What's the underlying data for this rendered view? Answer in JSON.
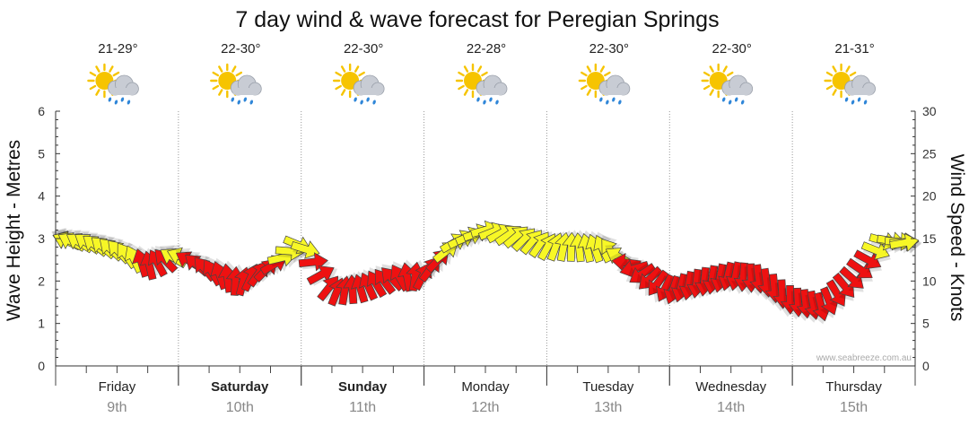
{
  "colors": {
    "arrow_strong": "#ee1111",
    "arrow_medium": "#f7f726",
    "arrow_stroke": "#444444",
    "grid": "#999999",
    "sun": "#f6c400",
    "cloud": "#c8ccd4",
    "rain": "#2f86d8"
  },
  "icons": {
    "weather": "sun-cloud-rain-icon"
  },
  "credit": "www.seabreeze.com.au",
  "chart_data": {
    "type": "line",
    "title": "7 day wind & wave forecast for Peregian Springs",
    "ylabel": "Wave Height - Metres",
    "y2label": "Wind Speed - Knots",
    "ylim": [
      0,
      6
    ],
    "y2lim": [
      0,
      30
    ],
    "yticks": [
      "0",
      "1",
      "2",
      "3",
      "4",
      "5",
      "6"
    ],
    "y2ticks": [
      "0",
      "5",
      "10",
      "15",
      "20",
      "25",
      "30"
    ],
    "grid": true,
    "days": [
      {
        "name": "Friday",
        "date": "9th",
        "temp": "21-29°",
        "bold": false
      },
      {
        "name": "Saturday",
        "date": "10th",
        "temp": "22-30°",
        "bold": true
      },
      {
        "name": "Sunday",
        "date": "11th",
        "temp": "22-30°",
        "bold": true
      },
      {
        "name": "Monday",
        "date": "12th",
        "temp": "22-28°",
        "bold": false
      },
      {
        "name": "Tuesday",
        "date": "13th",
        "temp": "22-30°",
        "bold": false
      },
      {
        "name": "Wednesday",
        "date": "14th",
        "temp": "22-30°",
        "bold": false
      },
      {
        "name": "Thursday",
        "date": "15th",
        "temp": "21-31°",
        "bold": false
      }
    ],
    "series": [
      {
        "x": [
          0.0,
          0.25,
          0.5,
          0.75,
          1.0,
          1.25,
          1.5,
          1.75,
          2.0,
          2.25,
          2.5,
          2.75,
          3.0,
          3.25,
          3.5,
          3.75,
          4.0,
          4.25,
          4.5,
          4.75,
          5.0,
          5.25,
          5.5,
          5.75,
          6.0,
          6.25,
          6.5,
          6.75,
          7.0
        ],
        "values": [
          14.8,
          14.5,
          13.6,
          11.8,
          13.0,
          11.2,
          9.8,
          11.6,
          14.6,
          8.7,
          9.2,
          10.4,
          10.6,
          14.6,
          16.0,
          15.3,
          14.1,
          14.0,
          13.8,
          11.0,
          8.8,
          9.8,
          10.6,
          10.2,
          7.6,
          6.9,
          10.4,
          14.8,
          14.5
        ],
        "directions": [
          200,
          215,
          225,
          260,
          200,
          235,
          280,
          320,
          30,
          300,
          250,
          225,
          300,
          330,
          345,
          320,
          300,
          265,
          240,
          150,
          110,
          95,
          105,
          80,
          90,
          75,
          40,
          15,
          350
        ]
      }
    ]
  }
}
